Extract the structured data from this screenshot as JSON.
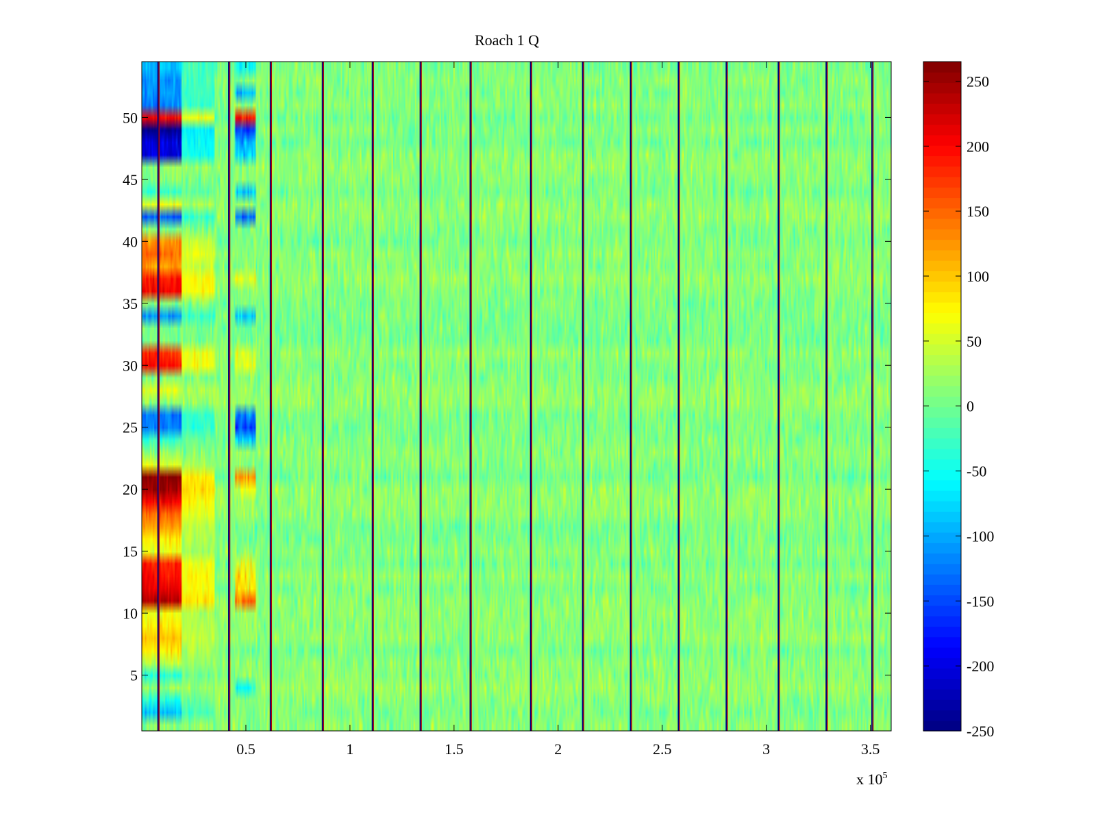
{
  "chart_data": {
    "type": "heatmap",
    "title": "Roach 1 Q",
    "xlabel": "",
    "ylabel": "",
    "x_exponent_label": "x 10",
    "x_exponent_power": "5",
    "xlim": [
      0,
      3.6
    ],
    "ylim": [
      0.5,
      54.5
    ],
    "x_ticks": [
      0.5,
      1,
      1.5,
      2,
      2.5,
      3,
      3.5
    ],
    "x_tick_labels": [
      "0.5",
      "1",
      "1.5",
      "2",
      "2.5",
      "3",
      "3.5"
    ],
    "y_ticks": [
      5,
      10,
      15,
      20,
      25,
      30,
      35,
      40,
      45,
      50
    ],
    "y_tick_labels": [
      "5",
      "10",
      "15",
      "20",
      "25",
      "30",
      "35",
      "40",
      "45",
      "50"
    ],
    "n_rows": 54,
    "colormap": "jet",
    "colorbar": {
      "range": [
        -250,
        265
      ],
      "ticks": [
        250,
        200,
        150,
        100,
        50,
        0,
        -50,
        -100,
        -150,
        -200,
        -250
      ],
      "tick_labels": [
        "250",
        "200",
        "150",
        "100",
        "50",
        "0",
        "-50",
        "-100",
        "-150",
        "-200",
        "-250"
      ]
    },
    "background_mean_value": 10,
    "vertical_lines_x": [
      0.08,
      0.42,
      0.62,
      0.87,
      1.11,
      1.34,
      1.58,
      1.87,
      2.12,
      2.35,
      2.58,
      2.81,
      3.06,
      3.29,
      3.51
    ],
    "early_block": {
      "x_range": [
        0,
        0.19
      ],
      "row_values": [
        {
          "row": 2,
          "value": -90
        },
        {
          "row": 3,
          "value": -40
        },
        {
          "row": 5,
          "value": -40
        },
        {
          "row": 6,
          "value": 40
        },
        {
          "row": 7,
          "value": 80
        },
        {
          "row": 8,
          "value": 100
        },
        {
          "row": 9,
          "value": 80
        },
        {
          "row": 10,
          "value": 60
        },
        {
          "row": 11,
          "value": 240
        },
        {
          "row": 12,
          "value": 210
        },
        {
          "row": 13,
          "value": 200
        },
        {
          "row": 14,
          "value": 190
        },
        {
          "row": 15,
          "value": 60
        },
        {
          "row": 16,
          "value": 80
        },
        {
          "row": 17,
          "value": 120
        },
        {
          "row": 18,
          "value": 150
        },
        {
          "row": 19,
          "value": 200
        },
        {
          "row": 20,
          "value": 250
        },
        {
          "row": 21,
          "value": 260
        },
        {
          "row": 22,
          "value": 60
        },
        {
          "row": 24,
          "value": -30
        },
        {
          "row": 25,
          "value": -120
        },
        {
          "row": 26,
          "value": -120
        },
        {
          "row": 28,
          "value": 60
        },
        {
          "row": 30,
          "value": 200
        },
        {
          "row": 31,
          "value": 180
        },
        {
          "row": 34,
          "value": -110
        },
        {
          "row": 36,
          "value": 200
        },
        {
          "row": 37,
          "value": 190
        },
        {
          "row": 38,
          "value": 120
        },
        {
          "row": 39,
          "value": 150
        },
        {
          "row": 40,
          "value": 130
        },
        {
          "row": 42,
          "value": -140
        },
        {
          "row": 43,
          "value": 60
        },
        {
          "row": 44,
          "value": -30
        },
        {
          "row": 47,
          "value": -200
        },
        {
          "row": 48,
          "value": -200
        },
        {
          "row": 49,
          "value": -240
        },
        {
          "row": 50,
          "value": 200
        },
        {
          "row": 51,
          "value": -120
        },
        {
          "row": 52,
          "value": -110
        },
        {
          "row": 53,
          "value": -110
        },
        {
          "row": 54,
          "value": -90
        }
      ]
    },
    "second_block": {
      "x_range": [
        0.45,
        0.55
      ],
      "row_values": [
        {
          "row": 4,
          "value": -50
        },
        {
          "row": 11,
          "value": 150
        },
        {
          "row": 12,
          "value": 80
        },
        {
          "row": 13,
          "value": 80
        },
        {
          "row": 14,
          "value": 60
        },
        {
          "row": 21,
          "value": 120
        },
        {
          "row": 20,
          "value": 60
        },
        {
          "row": 24,
          "value": -80
        },
        {
          "row": 25,
          "value": -160
        },
        {
          "row": 26,
          "value": -120
        },
        {
          "row": 30,
          "value": 60
        },
        {
          "row": 31,
          "value": 60
        },
        {
          "row": 34,
          "value": -90
        },
        {
          "row": 37,
          "value": 60
        },
        {
          "row": 42,
          "value": -130
        },
        {
          "row": 44,
          "value": -80
        },
        {
          "row": 47,
          "value": -80
        },
        {
          "row": 48,
          "value": -90
        },
        {
          "row": 49,
          "value": -150
        },
        {
          "row": 50,
          "value": 190
        },
        {
          "row": 52,
          "value": -90
        },
        {
          "row": 54,
          "value": -60
        }
      ]
    }
  }
}
